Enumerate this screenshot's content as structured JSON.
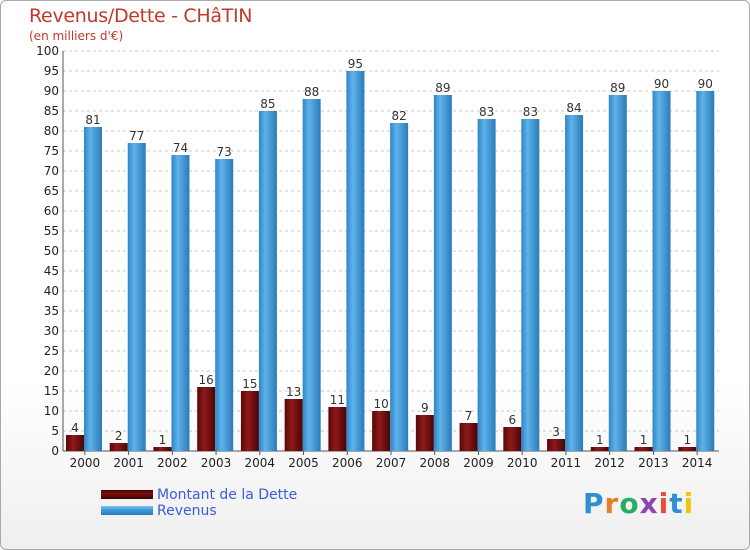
{
  "header": {
    "title": "Revenus/Dette - CHâTIN",
    "subtitle": "(en milliers d'€)"
  },
  "legend": {
    "debt_label": "Montant de la Dette",
    "revenue_label": "Revenus"
  },
  "brand": {
    "letters": [
      "P",
      "r",
      "o",
      "x",
      "i",
      "t",
      "i"
    ],
    "colors": [
      "#2f8fd1",
      "#e67e22",
      "#27ae60",
      "#8e44ad",
      "#e74c3c",
      "#2f8fd1",
      "#f1c40f"
    ]
  },
  "colors": {
    "debt": "#7a1010",
    "revenue": "#3a9ad9"
  },
  "chart_data": {
    "type": "bar",
    "title": "Revenus/Dette - CHâTIN",
    "subtitle": "(en milliers d'€)",
    "xlabel": "",
    "ylabel": "",
    "ylim": [
      0,
      100
    ],
    "ytick_step": 5,
    "categories": [
      "2000",
      "2001",
      "2002",
      "2003",
      "2004",
      "2005",
      "2006",
      "2007",
      "2008",
      "2009",
      "2010",
      "2011",
      "2012",
      "2013",
      "2014"
    ],
    "series": [
      {
        "name": "Montant de la Dette",
        "values": [
          4,
          2,
          1,
          16,
          15,
          13,
          11,
          10,
          9,
          7,
          6,
          3,
          1,
          1,
          1
        ]
      },
      {
        "name": "Revenus",
        "values": [
          81,
          77,
          74,
          73,
          85,
          88,
          95,
          82,
          89,
          83,
          83,
          84,
          89,
          90,
          90
        ]
      }
    ],
    "legend_position": "bottom-left",
    "grid": true
  }
}
